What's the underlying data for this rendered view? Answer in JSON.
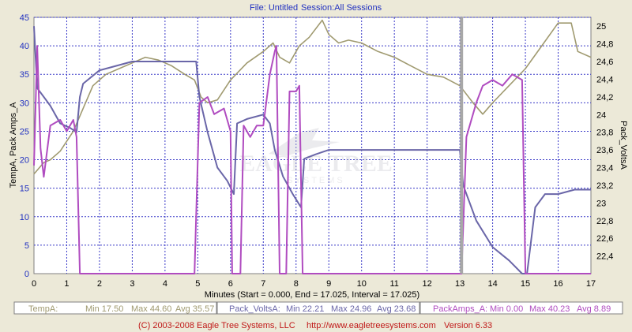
{
  "header": {
    "file_label": "File: Untitled",
    "session_label": "Session:All Sessions"
  },
  "footer": {
    "copyright": "(C) 2003-2008 Eagle Tree Systems, LLC",
    "url": "http://www.eagletreesystems.com",
    "version": "Version 6.33"
  },
  "watermark": {
    "brand": "EAGLE TREE",
    "sub": "SYSTEMS"
  },
  "colors": {
    "temp": "#a09a70",
    "volts": "#6a66a8",
    "amps": "#b04cc0",
    "grid": "#3a3ac8",
    "cursor": "#a8a8a8",
    "header_text": "#2030c0",
    "footer_text": "#c01818"
  },
  "stats": [
    {
      "name": "TempA:",
      "min": "Min 17.50",
      "max": "Max 44.60",
      "avg": "Avg 35.57"
    },
    {
      "name": "Pack_VoltsA:",
      "min": "Min 22.21",
      "max": "Max 24.96",
      "avg": "Avg 23.68"
    },
    {
      "name": "PackAmps_A:",
      "min": "Min 0.00",
      "max": "Max 40.23",
      "avg": "Avg 8.89"
    }
  ],
  "chart_data": {
    "type": "line",
    "xlabel": "Minutes (Start = 0.000,  End = 17.025,  Interval =  17.025)",
    "ylabel_left": "TempA, Pack Amps_A",
    "ylabel_right": "Pack_VoltsA",
    "xlim": [
      0,
      17
    ],
    "ylim_left": [
      0,
      45
    ],
    "ylim_right": [
      22.2,
      25.1
    ],
    "x_ticks": [
      "0",
      "1",
      "2",
      "3",
      "4",
      "5",
      "6",
      "7",
      "8",
      "9",
      "10",
      "11",
      "12",
      "13",
      "14",
      "15",
      "16",
      "17"
    ],
    "y_left_ticks": [
      "0",
      "5",
      "10",
      "15",
      "20",
      "25",
      "30",
      "35",
      "40",
      "45"
    ],
    "y_right_ticks": [
      "22,4",
      "22,6",
      "22,8",
      "23",
      "23,2",
      "23,4",
      "23,6",
      "23,8",
      "24",
      "24,2",
      "24,4",
      "24,6",
      "24,8",
      "25"
    ],
    "grid": true,
    "cursor_x": 13.05,
    "series": [
      {
        "name": "TempA",
        "axis": "left",
        "points": [
          [
            0,
            17.5
          ],
          [
            0.3,
            19.5
          ],
          [
            0.5,
            20
          ],
          [
            0.8,
            21.5
          ],
          [
            1.2,
            25
          ],
          [
            1.5,
            29
          ],
          [
            1.8,
            33
          ],
          [
            2.2,
            35
          ],
          [
            2.6,
            36
          ],
          [
            3.0,
            37
          ],
          [
            3.4,
            38
          ],
          [
            3.8,
            37.5
          ],
          [
            4.2,
            36.5
          ],
          [
            4.6,
            35
          ],
          [
            4.9,
            34
          ],
          [
            5.1,
            31
          ],
          [
            5.3,
            30
          ],
          [
            5.6,
            30.5
          ],
          [
            6.0,
            34
          ],
          [
            6.5,
            37
          ],
          [
            7.0,
            39
          ],
          [
            7.3,
            40.5
          ],
          [
            7.5,
            38
          ],
          [
            7.8,
            37
          ],
          [
            8.1,
            40
          ],
          [
            8.4,
            41.5
          ],
          [
            8.8,
            44.5
          ],
          [
            9.0,
            42
          ],
          [
            9.3,
            40.5
          ],
          [
            9.6,
            41
          ],
          [
            10,
            40.5
          ],
          [
            10.5,
            39
          ],
          [
            11,
            38
          ],
          [
            11.5,
            36.5
          ],
          [
            12,
            35
          ],
          [
            12.5,
            34.5
          ],
          [
            13,
            33
          ],
          [
            13.4,
            30
          ],
          [
            13.7,
            28
          ],
          [
            14,
            30
          ],
          [
            14.5,
            33
          ],
          [
            15,
            36
          ],
          [
            15.5,
            40
          ],
          [
            16,
            44
          ],
          [
            16.4,
            44
          ],
          [
            16.6,
            39
          ],
          [
            17,
            38
          ]
        ]
      },
      {
        "name": "Pack_VoltsA",
        "axis": "right",
        "points": [
          [
            0,
            25
          ],
          [
            0.1,
            24.3
          ],
          [
            0.3,
            24.2
          ],
          [
            0.5,
            24.1
          ],
          [
            0.8,
            23.9
          ],
          [
            1.1,
            23.85
          ],
          [
            1.3,
            23.8
          ],
          [
            1.4,
            24.2
          ],
          [
            1.5,
            24.35
          ],
          [
            2.0,
            24.5
          ],
          [
            2.5,
            24.55
          ],
          [
            3.0,
            24.6
          ],
          [
            3.5,
            24.6
          ],
          [
            4.0,
            24.6
          ],
          [
            4.5,
            24.6
          ],
          [
            4.95,
            24.6
          ],
          [
            5.05,
            24.2
          ],
          [
            5.3,
            23.8
          ],
          [
            5.6,
            23.4
          ],
          [
            5.9,
            23.25
          ],
          [
            6.1,
            23.1
          ],
          [
            6.2,
            23.9
          ],
          [
            6.5,
            23.95
          ],
          [
            7.0,
            24.0
          ],
          [
            7.2,
            23.9
          ],
          [
            7.35,
            23.6
          ],
          [
            7.6,
            23.3
          ],
          [
            7.9,
            23.1
          ],
          [
            8.15,
            22.95
          ],
          [
            8.25,
            23.5
          ],
          [
            8.6,
            23.55
          ],
          [
            9.0,
            23.6
          ],
          [
            10,
            23.6
          ],
          [
            11,
            23.6
          ],
          [
            12,
            23.6
          ],
          [
            13.0,
            23.6
          ],
          [
            13.1,
            23.2
          ],
          [
            13.5,
            22.8
          ],
          [
            14.0,
            22.5
          ],
          [
            14.5,
            22.35
          ],
          [
            14.9,
            22.2
          ],
          [
            15.05,
            22.2
          ],
          [
            15.3,
            22.95
          ],
          [
            15.6,
            23.1
          ],
          [
            16.0,
            23.1
          ],
          [
            16.5,
            23.15
          ],
          [
            17,
            23.15
          ]
        ]
      },
      {
        "name": "PackAmps_A",
        "axis": "left",
        "points": [
          [
            0,
            19
          ],
          [
            0.1,
            40
          ],
          [
            0.2,
            22
          ],
          [
            0.3,
            17
          ],
          [
            0.5,
            26
          ],
          [
            0.8,
            27
          ],
          [
            1.0,
            25
          ],
          [
            1.2,
            27
          ],
          [
            1.3,
            24
          ],
          [
            1.4,
            0
          ],
          [
            1.5,
            0
          ],
          [
            4.9,
            0
          ],
          [
            5.05,
            30
          ],
          [
            5.3,
            31
          ],
          [
            5.5,
            28
          ],
          [
            5.8,
            29
          ],
          [
            6.0,
            25
          ],
          [
            6.05,
            0
          ],
          [
            6.2,
            0
          ],
          [
            6.3,
            0
          ],
          [
            6.4,
            26
          ],
          [
            6.6,
            24
          ],
          [
            6.8,
            26
          ],
          [
            7.0,
            26
          ],
          [
            7.2,
            35
          ],
          [
            7.35,
            39
          ],
          [
            7.4,
            40
          ],
          [
            7.5,
            0
          ],
          [
            7.7,
            0
          ],
          [
            7.8,
            32
          ],
          [
            8.0,
            32
          ],
          [
            8.1,
            33
          ],
          [
            8.2,
            0
          ],
          [
            12.9,
            0
          ],
          [
            13.05,
            0
          ],
          [
            13.2,
            24
          ],
          [
            13.5,
            30
          ],
          [
            13.7,
            33
          ],
          [
            14.0,
            34
          ],
          [
            14.3,
            33
          ],
          [
            14.6,
            35
          ],
          [
            14.9,
            34
          ],
          [
            15.0,
            0
          ],
          [
            15.2,
            0
          ],
          [
            17,
            0
          ]
        ]
      }
    ]
  }
}
